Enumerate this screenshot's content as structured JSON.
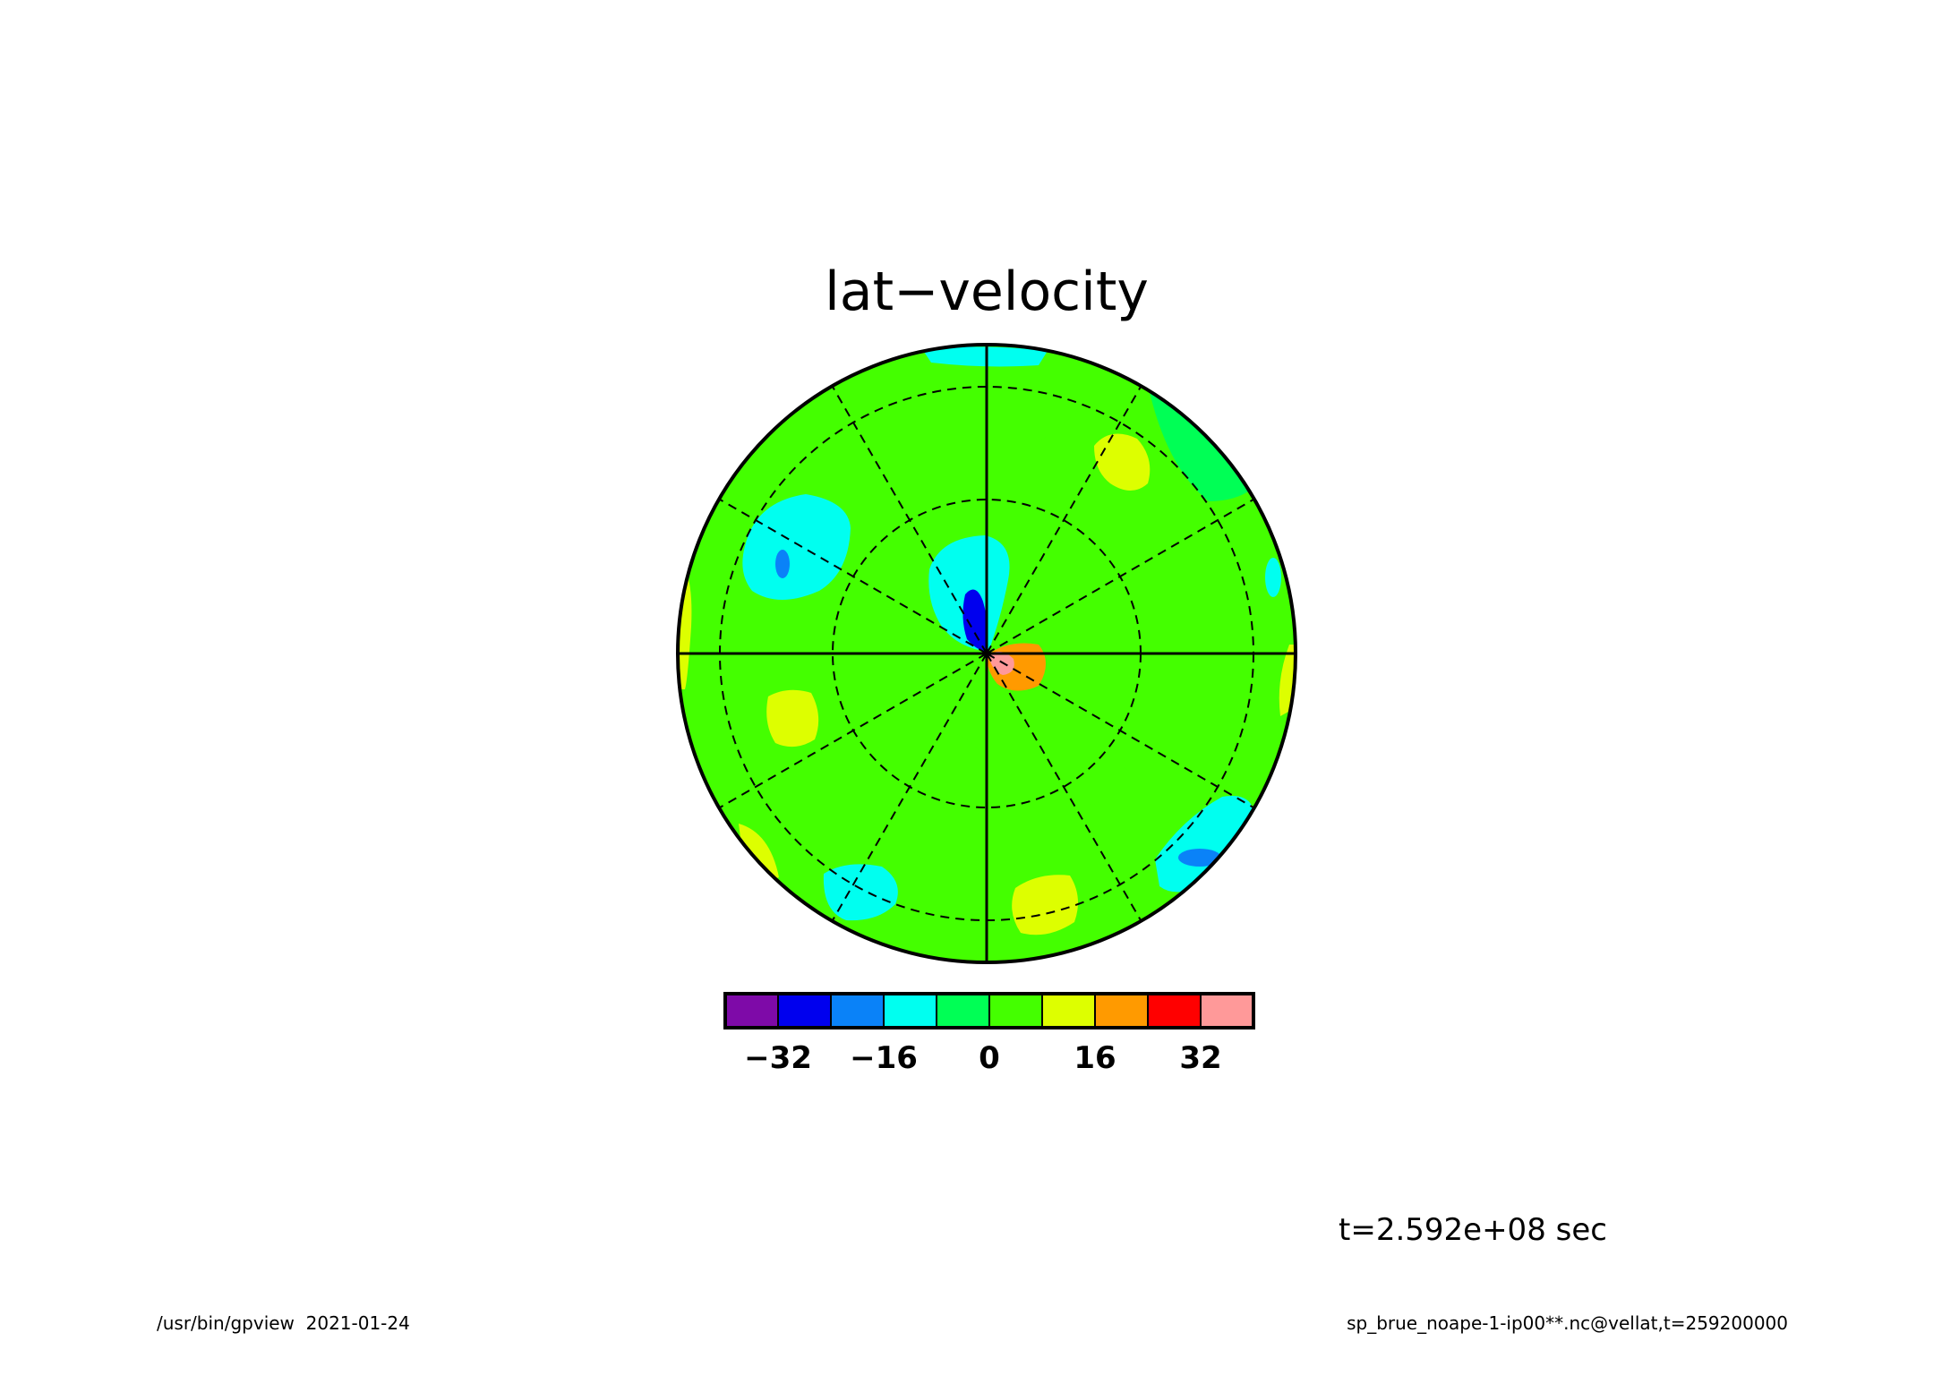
{
  "chart_data": {
    "type": "heatmap",
    "projection": "polar-stereographic",
    "title": "lat−velocity",
    "colorbar": {
      "colors": [
        "#7e0aa8",
        "#0000ee",
        "#0a82f8",
        "#00fff0",
        "#00ff55",
        "#44ff00",
        "#ddff00",
        "#ff9a00",
        "#ff0000",
        "#ff9999"
      ],
      "ticks": [
        -32,
        -16,
        0,
        16,
        32
      ],
      "tick_labels": [
        "−32",
        "−16",
        "0",
        "16",
        "32"
      ]
    },
    "background_level": 0,
    "features": [
      {
        "name": "central negative core",
        "value": -32
      },
      {
        "name": "central negative lobe",
        "value": -16
      },
      {
        "name": "central positive core",
        "value": 32
      },
      {
        "name": "central positive lobe",
        "value": 16
      },
      {
        "name": "northwest negative cell",
        "value": -16
      },
      {
        "name": "northwest negative core",
        "value": -24
      },
      {
        "name": "southeast negative cell",
        "value": -16
      },
      {
        "name": "southeast negative core",
        "value": -24
      },
      {
        "name": "south negative cell",
        "value": -16
      },
      {
        "name": "east negative cell",
        "value": -16
      },
      {
        "name": "northeast positive cell",
        "value": 12
      },
      {
        "name": "west positive cell",
        "value": 12
      },
      {
        "name": "south positive cell",
        "value": 12
      }
    ],
    "grid": {
      "parallels": "dashed",
      "meridians": "dashed"
    }
  },
  "annotations": {
    "time_label": "t=2.592e+08 sec",
    "footer_left": "/usr/bin/gpview  2021-01-24",
    "footer_right": "sp_brue_noape-1-ip00**.nc@vellat,t=259200000"
  }
}
